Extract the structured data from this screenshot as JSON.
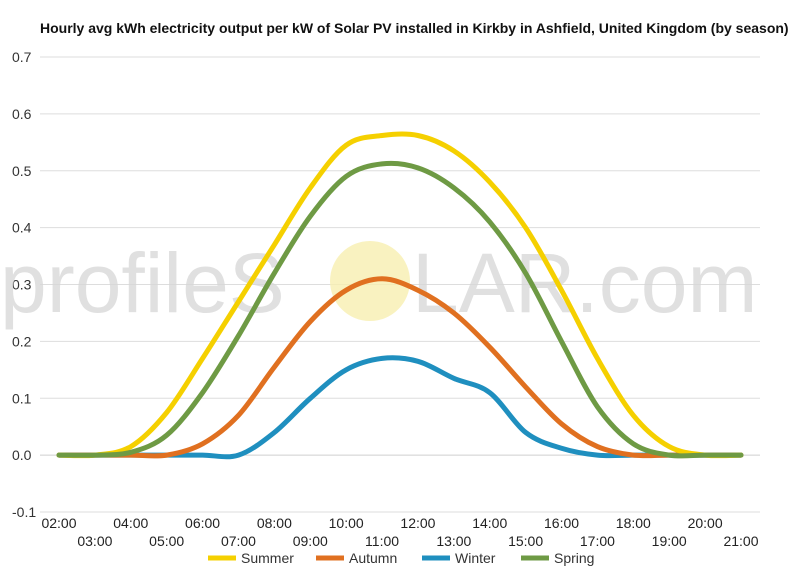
{
  "chart_data": {
    "type": "line",
    "title": "Hourly avg kWh electricity output per kW of Solar PV installed in Kirkby in Ashfield, United Kingdom (by season)",
    "xlabel": "",
    "ylabel": "",
    "ylim": [
      -0.1,
      0.7
    ],
    "yticks": [
      "0.7",
      "0.6",
      "0.5",
      "0.4",
      "0.3",
      "0.2",
      "0.1",
      "0.0",
      "-0.1"
    ],
    "ytick_values": [
      0.7,
      0.6,
      0.5,
      0.4,
      0.3,
      0.2,
      0.1,
      0.0,
      -0.1
    ],
    "x": [
      "02:00",
      "03:00",
      "04:00",
      "05:00",
      "06:00",
      "07:00",
      "08:00",
      "09:00",
      "10:00",
      "11:00",
      "12:00",
      "13:00",
      "14:00",
      "15:00",
      "16:00",
      "17:00",
      "18:00",
      "19:00",
      "20:00",
      "21:00"
    ],
    "grid": true,
    "legend_position": "bottom",
    "series": [
      {
        "name": "Summer",
        "color": "#f5d000",
        "values": [
          0.0,
          0.0,
          0.015,
          0.075,
          0.17,
          0.27,
          0.37,
          0.47,
          0.545,
          0.562,
          0.562,
          0.535,
          0.48,
          0.4,
          0.29,
          0.17,
          0.07,
          0.015,
          0.0,
          0.0
        ]
      },
      {
        "name": "Autumn",
        "color": "#e07020",
        "values": [
          0.0,
          0.0,
          0.0,
          0.0,
          0.02,
          0.07,
          0.155,
          0.235,
          0.29,
          0.31,
          0.29,
          0.25,
          0.19,
          0.12,
          0.055,
          0.015,
          0.0,
          0.0,
          0.0,
          0.0
        ]
      },
      {
        "name": "Winter",
        "color": "#1f8fbf",
        "values": [
          0.0,
          0.0,
          0.0,
          0.0,
          0.0,
          0.0,
          0.04,
          0.1,
          0.15,
          0.17,
          0.165,
          0.135,
          0.11,
          0.04,
          0.012,
          0.0,
          0.0,
          0.0,
          0.0,
          0.0
        ]
      },
      {
        "name": "Spring",
        "color": "#6e9a44",
        "values": [
          0.0,
          0.0,
          0.005,
          0.035,
          0.11,
          0.21,
          0.32,
          0.42,
          0.49,
          0.512,
          0.505,
          0.47,
          0.41,
          0.32,
          0.2,
          0.085,
          0.02,
          0.0,
          0.0,
          0.0
        ]
      }
    ]
  },
  "watermark": {
    "left": "profileS",
    "right": "LAR.com",
    "sun_color": "#f7efb0"
  }
}
